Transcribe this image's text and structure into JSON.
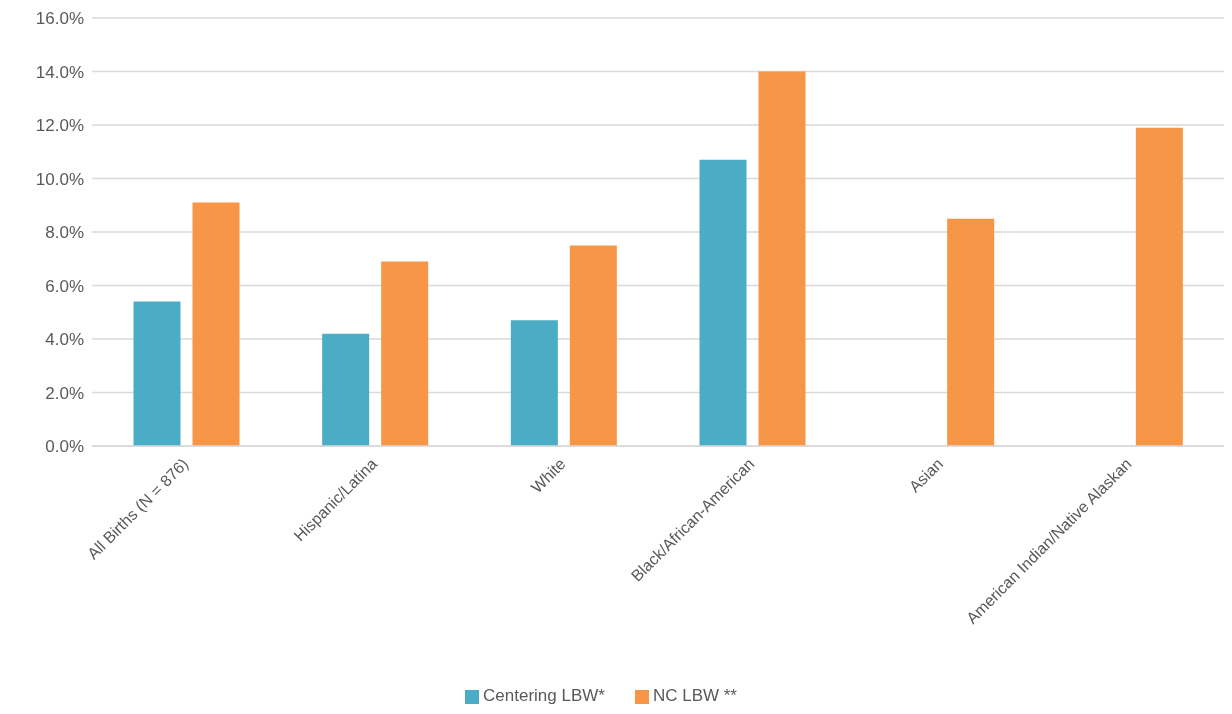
{
  "chart_data": {
    "type": "bar",
    "categories": [
      "All Births (N = 876)",
      "Hispanic/Latina",
      "White",
      "Black/African-American",
      "Asian",
      "American Indian/Native Alaskan"
    ],
    "series": [
      {
        "name": "Centering LBW*",
        "color": "#4bacc6",
        "values": [
          5.4,
          4.2,
          4.7,
          10.7,
          null,
          null
        ]
      },
      {
        "name": "NC LBW **",
        "color": "#f79646",
        "values": [
          9.1,
          6.9,
          7.5,
          14.0,
          8.5,
          11.9
        ]
      }
    ],
    "ylim": [
      0,
      16
    ],
    "yticks": [
      {
        "value": 0,
        "label": "0.0%"
      },
      {
        "value": 2,
        "label": "2.0%"
      },
      {
        "value": 4,
        "label": "4.0%"
      },
      {
        "value": 6,
        "label": "6.0%"
      },
      {
        "value": 8,
        "label": "8.0%"
      },
      {
        "value": 10,
        "label": "10.0%"
      },
      {
        "value": 12,
        "label": "12.0%"
      },
      {
        "value": 14,
        "label": "14.0%"
      },
      {
        "value": 16,
        "label": "16.0%"
      }
    ],
    "grid": "y",
    "legend": "bottom"
  }
}
